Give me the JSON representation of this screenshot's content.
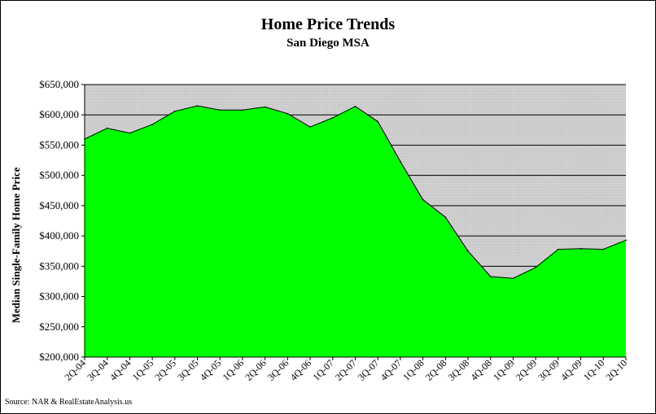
{
  "chart_data": {
    "type": "area",
    "title": "Home Price Trends",
    "subtitle": "San Diego MSA",
    "ylabel": "Median Single-Family Home Price",
    "xlabel": "",
    "source": "Source: NAR & RealEstateAnalysis.us",
    "ylim": [
      200000,
      650000
    ],
    "yticks": [
      "$200,000",
      "$250,000",
      "$300,000",
      "$350,000",
      "$400,000",
      "$450,000",
      "$500,000",
      "$550,000",
      "$600,000",
      "$650,000"
    ],
    "ytick_values": [
      200000,
      250000,
      300000,
      350000,
      400000,
      450000,
      500000,
      550000,
      600000,
      650000
    ],
    "categories": [
      "2Q-04",
      "3Q-04",
      "4Q-04",
      "1Q-05",
      "2Q-05",
      "3Q-05",
      "4Q-05",
      "1Q-06",
      "2Q-06",
      "3Q-06",
      "4Q-06",
      "1Q-07",
      "2Q-07",
      "3Q-07",
      "4Q-07",
      "1Q-08",
      "2Q-08",
      "3Q-08",
      "4Q-08",
      "1Q-09",
      "2Q-09",
      "3Q-09",
      "4Q-09",
      "1Q-10",
      "2Q-10"
    ],
    "values": [
      560000,
      578000,
      570000,
      584000,
      606000,
      615000,
      608000,
      608000,
      613000,
      602000,
      580000,
      595000,
      614000,
      589000,
      523000,
      460000,
      431000,
      375000,
      333000,
      330000,
      348000,
      378000,
      379000,
      378000,
      393000
    ],
    "grid": true,
    "colors": {
      "fill": "#00ff00",
      "plot_bg": "#c8c8c8",
      "grid": "#000000"
    }
  }
}
